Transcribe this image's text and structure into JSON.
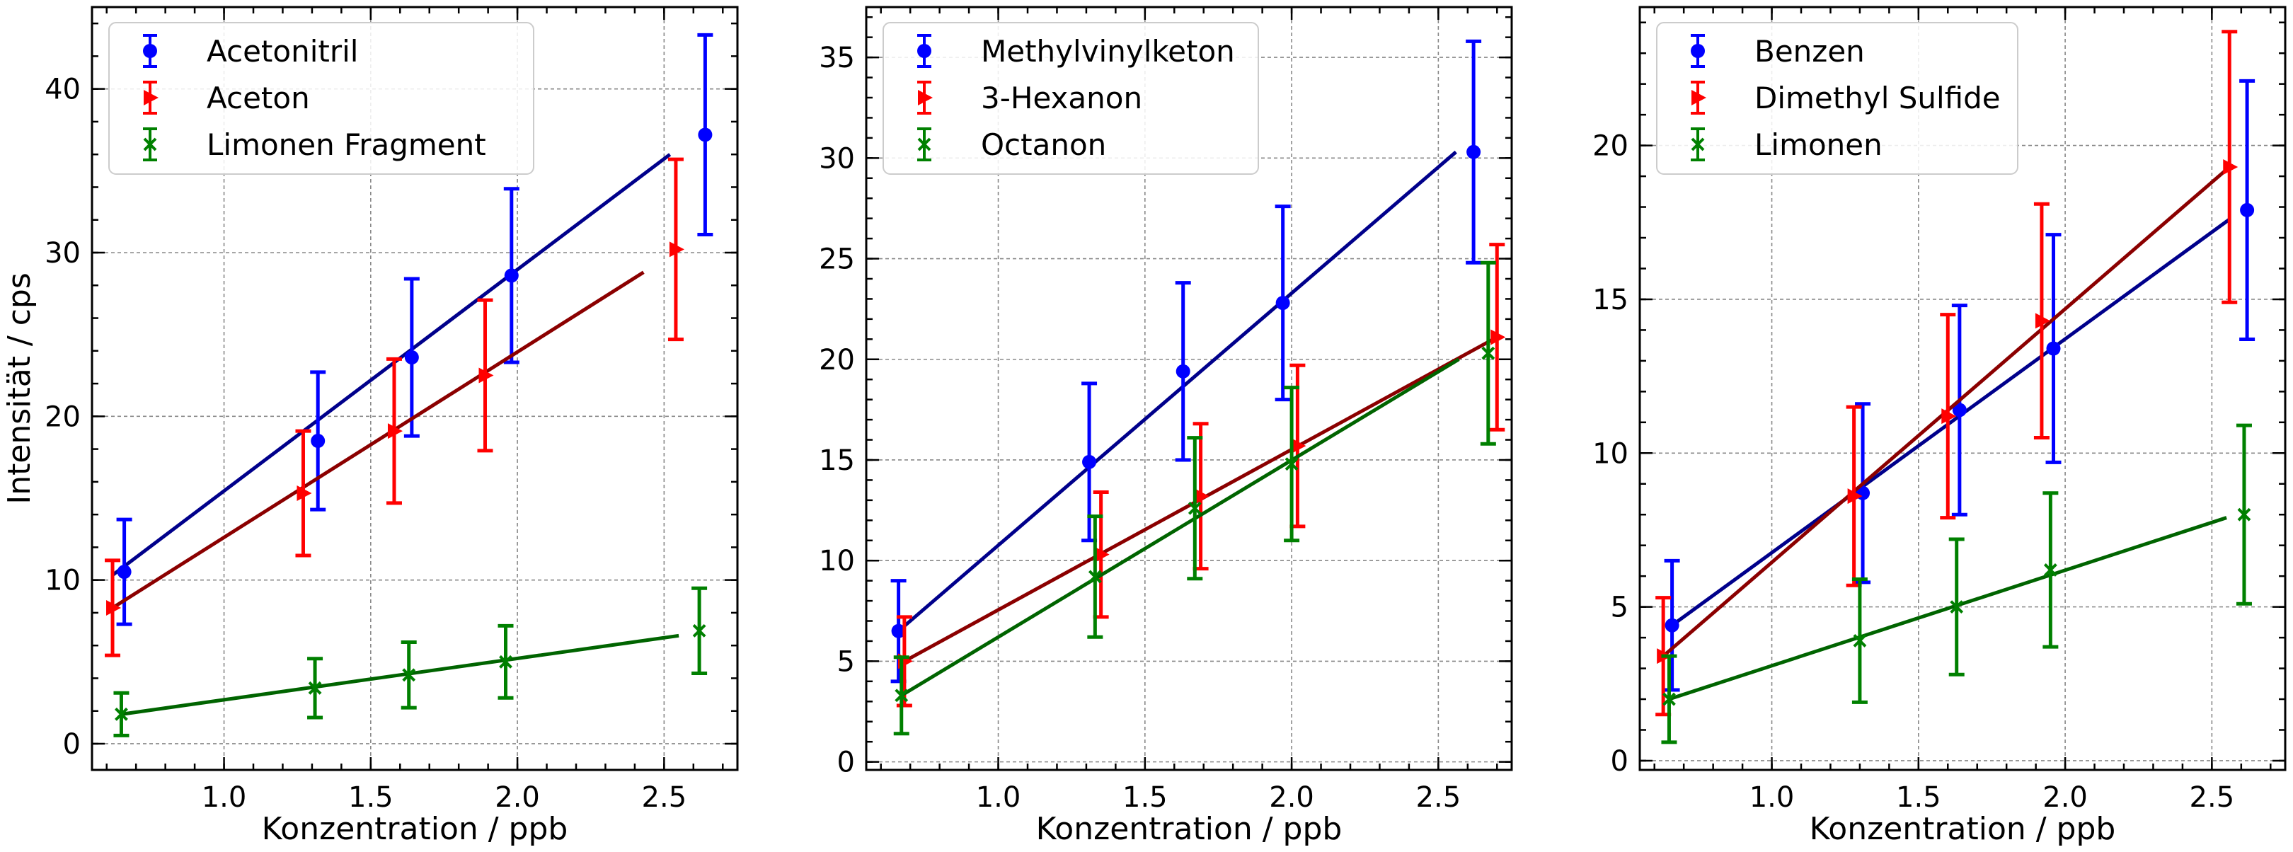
{
  "figure": {
    "ylabel": "Intensität / cps",
    "colors": {
      "blue": "#0000ff",
      "red": "#ff0000",
      "green": "#008000",
      "fit_blue": "#00008b",
      "fit_red": "#8b0000",
      "fit_green": "#006400"
    }
  },
  "chart_data": [
    {
      "type": "scatter",
      "xlabel": "Konzentration / ppb",
      "ylabel": "Intensität / cps",
      "xlim": [
        0.55,
        2.75
      ],
      "ylim": [
        -1.6,
        45
      ],
      "x_ticks": [
        1.0,
        1.5,
        2.0,
        2.5
      ],
      "x_tick_labels": [
        "1.0",
        "1.5",
        "2.0",
        "2.5"
      ],
      "y_ticks": [
        0,
        10,
        20,
        30,
        40
      ],
      "y_tick_labels": [
        "0",
        "10",
        "20",
        "30",
        "40"
      ],
      "grid": true,
      "legend_position": "top-left",
      "series": [
        {
          "name": "Acetonitril",
          "color": "#0000ff",
          "marker": "circle",
          "x": [
            0.66,
            1.32,
            1.64,
            1.98,
            2.64
          ],
          "y": [
            10.5,
            18.5,
            23.6,
            28.6,
            37.2
          ],
          "yerr": [
            3.2,
            4.2,
            4.8,
            5.3,
            6.1
          ],
          "fit": {
            "color": "#00008b",
            "x": [
              0.62,
              2.52
            ],
            "y": [
              10.3,
              36.0
            ]
          }
        },
        {
          "name": "Aceton",
          "color": "#ff0000",
          "marker": "triangle-right",
          "x": [
            0.62,
            1.27,
            1.58,
            1.89,
            2.54
          ],
          "y": [
            8.3,
            15.3,
            19.1,
            22.5,
            30.2
          ],
          "yerr": [
            2.9,
            3.8,
            4.4,
            4.6,
            5.5
          ],
          "fit": {
            "color": "#8b0000",
            "x": [
              0.62,
              2.43
            ],
            "y": [
              8.3,
              28.8
            ]
          }
        },
        {
          "name": "Limonen Fragment",
          "color": "#008000",
          "marker": "x",
          "x": [
            0.65,
            1.31,
            1.63,
            1.96,
            2.62
          ],
          "y": [
            1.8,
            3.4,
            4.2,
            5.0,
            6.9
          ],
          "yerr": [
            1.3,
            1.8,
            2.0,
            2.2,
            2.6
          ],
          "fit": {
            "color": "#006400",
            "x": [
              0.65,
              2.55
            ],
            "y": [
              1.8,
              6.6
            ]
          }
        }
      ]
    },
    {
      "type": "scatter",
      "xlabel": "Konzentration / ppb",
      "ylabel": "",
      "xlim": [
        0.55,
        2.75
      ],
      "ylim": [
        -0.4,
        37.5
      ],
      "x_ticks": [
        1.0,
        1.5,
        2.0,
        2.5
      ],
      "x_tick_labels": [
        "1.0",
        "1.5",
        "2.0",
        "2.5"
      ],
      "y_ticks": [
        0,
        5,
        10,
        15,
        20,
        25,
        30,
        35
      ],
      "y_tick_labels": [
        "0",
        "5",
        "10",
        "15",
        "20",
        "25",
        "30",
        "35"
      ],
      "grid": true,
      "legend_position": "top-left",
      "series": [
        {
          "name": "Methylvinylketon",
          "color": "#0000ff",
          "marker": "circle",
          "x": [
            0.66,
            1.31,
            1.63,
            1.97,
            2.62
          ],
          "y": [
            6.5,
            14.9,
            19.4,
            22.8,
            30.3
          ],
          "yerr": [
            2.5,
            3.9,
            4.4,
            4.8,
            5.5
          ],
          "fit": {
            "color": "#00008b",
            "x": [
              0.66,
              2.56
            ],
            "y": [
              6.5,
              30.3
            ]
          }
        },
        {
          "name": "3-Hexanon",
          "color": "#ff0000",
          "marker": "triangle-right",
          "x": [
            0.68,
            1.35,
            1.69,
            2.02,
            2.7
          ],
          "y": [
            5.0,
            10.3,
            13.2,
            15.7,
            21.1
          ],
          "yerr": [
            2.2,
            3.1,
            3.6,
            4.0,
            4.6
          ],
          "fit": {
            "color": "#8b0000",
            "x": [
              0.68,
              2.7
            ],
            "y": [
              5.0,
              21.1
            ]
          }
        },
        {
          "name": "Octanon",
          "color": "#008000",
          "marker": "x",
          "x": [
            0.67,
            1.33,
            1.67,
            2.0,
            2.67
          ],
          "y": [
            3.3,
            9.2,
            12.6,
            14.8,
            20.3
          ],
          "yerr": [
            1.9,
            3.0,
            3.5,
            3.8,
            4.5
          ],
          "fit": {
            "color": "#006400",
            "x": [
              0.67,
              2.57
            ],
            "y": [
              3.3,
              20.0
            ]
          }
        }
      ]
    },
    {
      "type": "scatter",
      "xlabel": "Konzentration / ppb",
      "ylabel": "",
      "xlim": [
        0.55,
        2.75
      ],
      "ylim": [
        -0.3,
        24.5
      ],
      "x_ticks": [
        1.0,
        1.5,
        2.0,
        2.5
      ],
      "x_tick_labels": [
        "1.0",
        "1.5",
        "2.0",
        "2.5"
      ],
      "y_ticks": [
        0,
        5,
        10,
        15,
        20
      ],
      "y_tick_labels": [
        "0",
        "5",
        "10",
        "15",
        "20"
      ],
      "grid": true,
      "legend_position": "top-left",
      "series": [
        {
          "name": "Benzen",
          "color": "#0000ff",
          "marker": "circle",
          "x": [
            0.66,
            1.31,
            1.64,
            1.96,
            2.62
          ],
          "y": [
            4.4,
            8.7,
            11.4,
            13.4,
            17.9
          ],
          "yerr": [
            2.1,
            2.9,
            3.4,
            3.7,
            4.2
          ],
          "fit": {
            "color": "#00008b",
            "x": [
              0.66,
              2.56
            ],
            "y": [
              4.4,
              17.6
            ]
          }
        },
        {
          "name": "Dimethyl Sulfide",
          "color": "#ff0000",
          "marker": "triangle-right",
          "x": [
            0.63,
            1.28,
            1.6,
            1.92,
            2.56
          ],
          "y": [
            3.4,
            8.6,
            11.2,
            14.3,
            19.3
          ],
          "yerr": [
            1.9,
            2.9,
            3.3,
            3.8,
            4.4
          ],
          "fit": {
            "color": "#8b0000",
            "x": [
              0.63,
              2.56
            ],
            "y": [
              3.4,
              19.3
            ]
          }
        },
        {
          "name": "Limonen",
          "color": "#008000",
          "marker": "x",
          "x": [
            0.65,
            1.3,
            1.63,
            1.95,
            2.61
          ],
          "y": [
            2.0,
            3.9,
            5.0,
            6.2,
            8.0
          ],
          "yerr": [
            1.4,
            2.0,
            2.2,
            2.5,
            2.9
          ],
          "fit": {
            "color": "#006400",
            "x": [
              0.65,
              2.55
            ],
            "y": [
              2.0,
              7.9
            ]
          }
        }
      ]
    }
  ]
}
